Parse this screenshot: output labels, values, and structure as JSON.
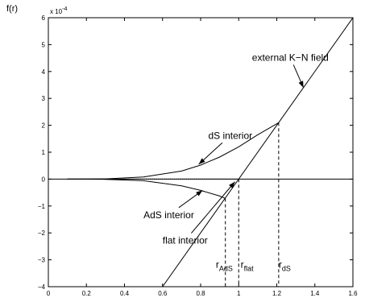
{
  "chart_data": {
    "type": "line",
    "ylabel": "f(r)",
    "y_multiplier": "x 10",
    "y_multiplier_exp": "-4",
    "xlim": [
      0,
      1.6
    ],
    "ylim": [
      -4,
      6
    ],
    "xticks": [
      0,
      0.2,
      0.4,
      0.6,
      0.8,
      1,
      1.2,
      1.4,
      1.6
    ],
    "xtick_labels": [
      "0",
      "0.2",
      "0.4",
      "0.6",
      "0.8",
      "1",
      "1.2",
      "1.4",
      "1.6"
    ],
    "yticks": [
      -4,
      -3,
      -2,
      -1,
      0,
      1,
      2,
      3,
      4,
      5,
      6
    ],
    "ytick_labels": [
      "−4",
      "−3",
      "−2",
      "−1",
      "0",
      "1",
      "2",
      "3",
      "4",
      "5",
      "6"
    ],
    "grid": false,
    "series": [
      {
        "style": "solid",
        "x": [
          0.6,
          1.6
        ],
        "y": [
          -4,
          6
        ]
      },
      {
        "style": "solid",
        "x": [
          0.1,
          0.3,
          0.5,
          0.7,
          0.8,
          0.9,
          1.0,
          1.1,
          1.21
        ],
        "y": [
          0.0,
          0.01,
          0.08,
          0.3,
          0.52,
          0.82,
          1.2,
          1.65,
          2.1
        ]
      },
      {
        "style": "solid",
        "x": [
          0.1,
          0.3,
          0.5,
          0.7,
          0.8,
          0.9,
          0.93
        ],
        "y": [
          0.0,
          -0.01,
          -0.06,
          -0.25,
          -0.42,
          -0.63,
          -0.72
        ]
      },
      {
        "style": "dotted",
        "x": [
          0.1,
          1.0
        ],
        "y": [
          0.0,
          0.0
        ]
      },
      {
        "style": "solid",
        "x": [
          0,
          1.6
        ],
        "y": [
          0,
          0
        ]
      }
    ],
    "vlines": [
      {
        "x": 0.93,
        "y_top": -0.72
      },
      {
        "x": 1.0,
        "y_top": 0.0
      },
      {
        "x": 1.21,
        "y_top": 2.1
      }
    ],
    "annotations": [
      {
        "text": "external K−N field",
        "tx": 1.07,
        "ty": 4.4,
        "ax": 1.34,
        "ay": 3.4,
        "arrow": true
      },
      {
        "text": "dS interior",
        "tx": 0.84,
        "ty": 1.5,
        "ax": 0.79,
        "ay": 0.55,
        "arrow": true
      },
      {
        "text": "AdS interior",
        "tx": 0.5,
        "ty": -1.45,
        "ax": 0.81,
        "ay": -0.42,
        "arrow": true
      },
      {
        "text": "flat interior",
        "tx": 0.6,
        "ty": -2.4,
        "ax": 0.98,
        "ay": -0.1,
        "arrow": true
      }
    ],
    "r_labels": [
      {
        "base": "r",
        "sub": "AdS",
        "x": 0.88,
        "y": -3.3
      },
      {
        "base": "r",
        "sub": "flat",
        "x": 1.01,
        "y": -3.3
      },
      {
        "base": "r",
        "sub": "dS",
        "x": 1.21,
        "y": -3.3
      }
    ]
  }
}
